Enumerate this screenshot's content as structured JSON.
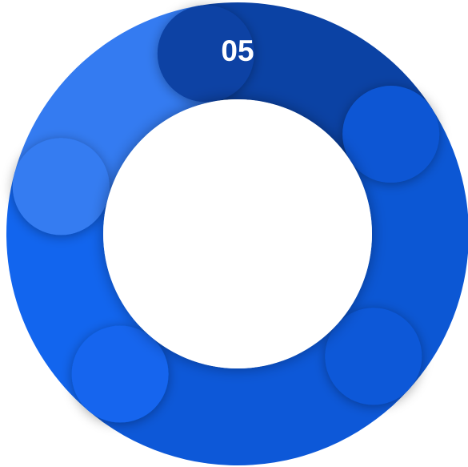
{
  "diagram": {
    "type": "segmented-ring",
    "segments": [
      {
        "id": "seg-05",
        "label": "05",
        "color": "#0b42a4"
      },
      {
        "id": "seg-blue-right",
        "label": "",
        "color": "#0c57d4"
      },
      {
        "id": "seg-blue-bottom",
        "label": "",
        "color": "#0d58d8"
      },
      {
        "id": "seg-blue-left",
        "label": "",
        "color": "#1265ee"
      },
      {
        "id": "seg-light-upper-left",
        "label": "",
        "color": "#347bf1"
      }
    ],
    "label_color": "#ffffff",
    "center_color": "#ffffff"
  }
}
